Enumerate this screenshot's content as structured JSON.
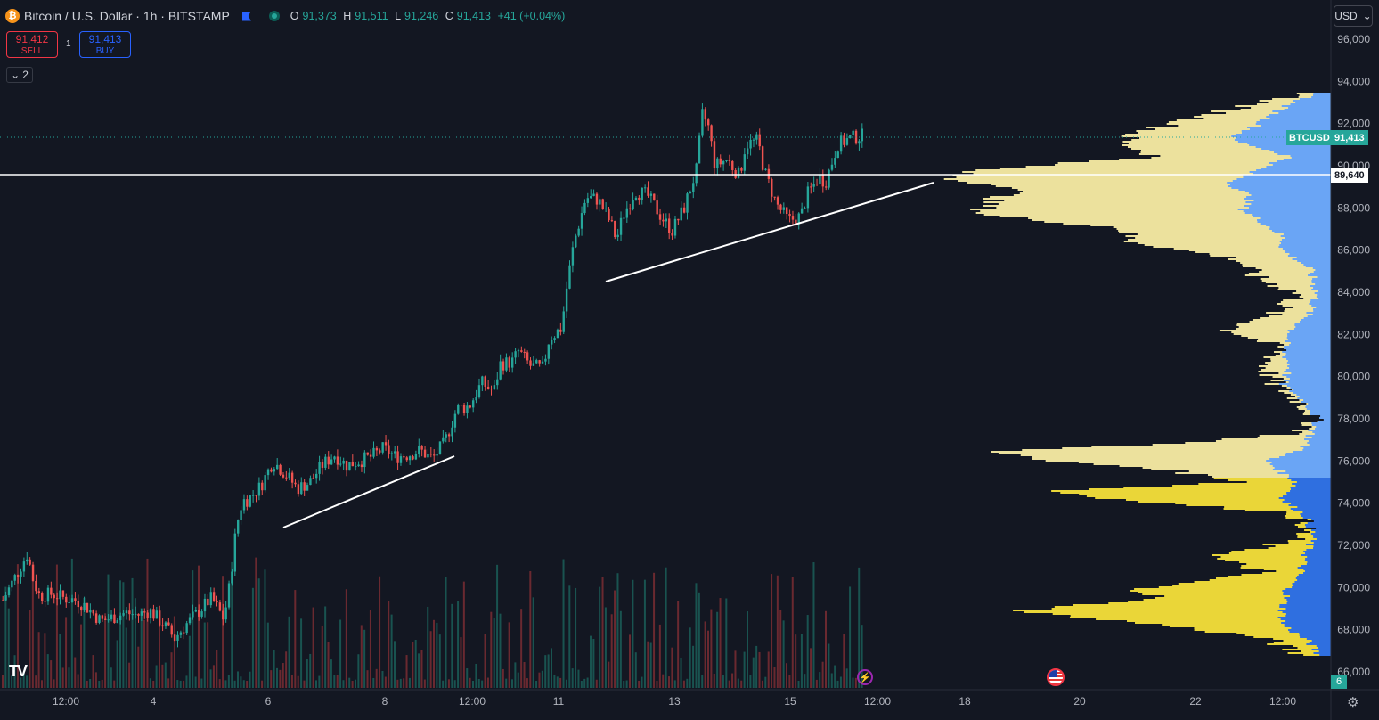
{
  "header": {
    "coin_glyph": "₿",
    "title": "Bitcoin / U.S. Dollar · 1h · BITSTAMP",
    "ohlc": {
      "o_label": "O",
      "o_value": "91,373",
      "h_label": "H",
      "h_value": "91,511",
      "l_label": "L",
      "l_value": "91,246",
      "c_label": "C",
      "c_value": "91,413",
      "change": "+41 (+0.04%)"
    }
  },
  "trade": {
    "sell_price": "91,412",
    "sell_label": "SELL",
    "buy_price": "91,413",
    "buy_label": "BUY",
    "spread": "1"
  },
  "indicators_toggle": {
    "chevron": "⌄",
    "count": "2"
  },
  "currency_select": {
    "value": "USD",
    "chevron": "⌄"
  },
  "price_axis": {
    "ticks": [
      "96,000",
      "94,000",
      "92,000",
      "90,000",
      "88,000",
      "86,000",
      "84,000",
      "82,000",
      "80,000",
      "78,000",
      "76,000",
      "74,000",
      "72,000",
      "70,000",
      "68,000",
      "66,000"
    ],
    "symbol_label": "BTCUSD",
    "last_price": "91,413",
    "level_price": "89,640"
  },
  "time_axis": {
    "ticks": [
      "12:00",
      "4",
      "6",
      "8",
      "12:00",
      "11",
      "13",
      "15",
      "12:00",
      "18",
      "20",
      "22",
      "12:00"
    ]
  },
  "volume_badge": "6",
  "colors": {
    "up": "#26a69a",
    "down": "#ef5350",
    "background": "#131722",
    "accent": "#2962ff"
  },
  "icons": {
    "tv_logo": "tradingview-logo-icon",
    "bolt": "lightning-icon",
    "flag": "us-flag-icon",
    "gear": "gear-icon"
  },
  "chart_data": {
    "type": "candlestick",
    "symbol": "BTCUSD",
    "interval": "1h",
    "ylim": [
      65800,
      96800
    ],
    "close_path": [
      [
        0,
        69400
      ],
      [
        2,
        70500
      ],
      [
        4,
        71600
      ],
      [
        5,
        70300
      ],
      [
        6,
        69600
      ],
      [
        8,
        69700
      ],
      [
        10,
        69500
      ],
      [
        12,
        69400
      ],
      [
        14,
        69000
      ],
      [
        16,
        68400
      ],
      [
        18,
        68600
      ],
      [
        20,
        68800
      ],
      [
        22,
        68700
      ],
      [
        24,
        68900
      ],
      [
        26,
        68300
      ],
      [
        28,
        67600
      ],
      [
        30,
        68300
      ],
      [
        32,
        68900
      ],
      [
        34,
        69500
      ],
      [
        36,
        68500
      ],
      [
        37,
        70200
      ],
      [
        38,
        72800
      ],
      [
        39,
        74100
      ],
      [
        40,
        74200
      ],
      [
        42,
        74800
      ],
      [
        44,
        76000
      ],
      [
        46,
        75400
      ],
      [
        48,
        74700
      ],
      [
        50,
        75000
      ],
      [
        52,
        75800
      ],
      [
        54,
        76300
      ],
      [
        56,
        75800
      ],
      [
        58,
        76000
      ],
      [
        60,
        76200
      ],
      [
        62,
        76600
      ],
      [
        64,
        76200
      ],
      [
        66,
        76300
      ],
      [
        68,
        76500
      ],
      [
        70,
        76100
      ],
      [
        72,
        76900
      ],
      [
        74,
        78500
      ],
      [
        76,
        78600
      ],
      [
        78,
        79700
      ],
      [
        80,
        79300
      ],
      [
        81,
        80600
      ],
      [
        83,
        80700
      ],
      [
        84,
        81200
      ],
      [
        86,
        80500
      ],
      [
        88,
        80400
      ],
      [
        89,
        81800
      ],
      [
        91,
        82300
      ],
      [
        92,
        84500
      ],
      [
        93,
        86300
      ],
      [
        95,
        88500
      ],
      [
        97,
        88400
      ],
      [
        99,
        87300
      ],
      [
        100,
        86500
      ],
      [
        101,
        87600
      ],
      [
        103,
        88800
      ],
      [
        105,
        88600
      ],
      [
        107,
        87700
      ],
      [
        109,
        86900
      ],
      [
        111,
        88000
      ],
      [
        113,
        89800
      ],
      [
        114,
        92500
      ],
      [
        115,
        91800
      ],
      [
        116,
        90000
      ],
      [
        118,
        90300
      ],
      [
        120,
        89500
      ],
      [
        121,
        91000
      ],
      [
        123,
        91200
      ],
      [
        124,
        89800
      ],
      [
        126,
        88200
      ],
      [
        128,
        87400
      ],
      [
        130,
        87600
      ],
      [
        131,
        88600
      ],
      [
        133,
        89500
      ],
      [
        134,
        89200
      ],
      [
        136,
        91000
      ],
      [
        138,
        91300
      ],
      [
        140,
        91413
      ]
    ],
    "volume_profile": "right-side horizontal volume profile, value area highlighted blue, yellow volume bars",
    "horizontal_level": 89640,
    "trendlines": [
      {
        "from": [
          "6",
          73000
        ],
        "to": [
          "9",
          76200
        ]
      },
      {
        "from": [
          "11",
          84500
        ],
        "to": [
          "17",
          89300
        ]
      }
    ]
  }
}
